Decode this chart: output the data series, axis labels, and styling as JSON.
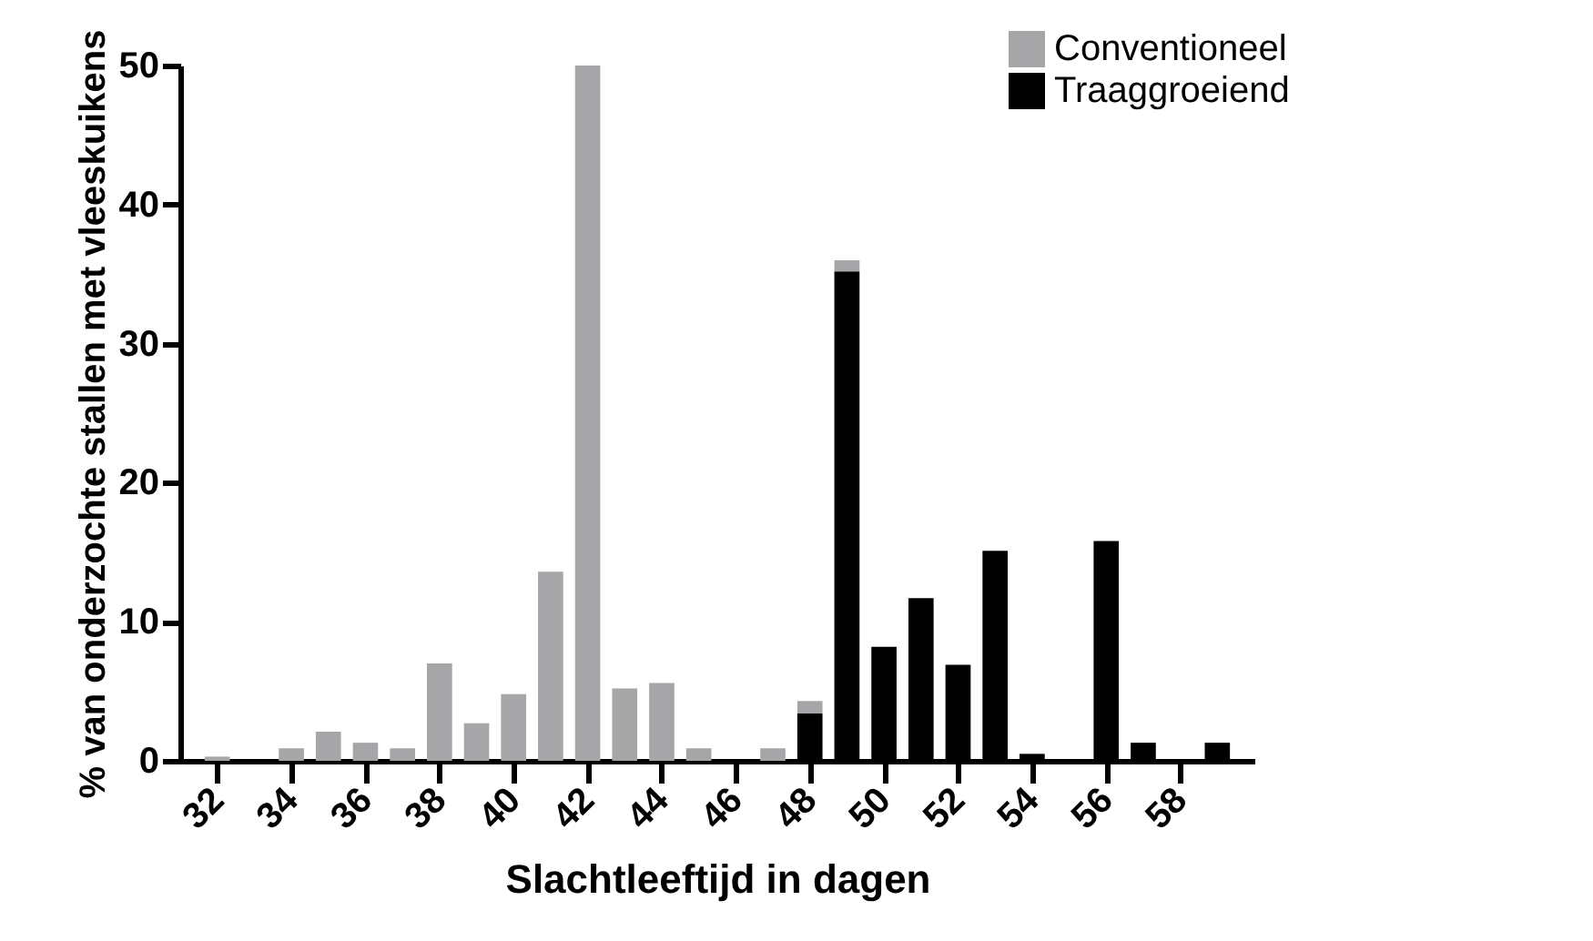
{
  "chart_data": {
    "type": "bar",
    "xlabel": "Slachtleeftijd in dagen",
    "ylabel": "% van onderzochte stallen met vleeskuikens",
    "x": [
      32,
      33,
      34,
      35,
      36,
      37,
      38,
      39,
      40,
      41,
      42,
      43,
      44,
      45,
      46,
      47,
      48,
      49,
      50,
      51,
      52,
      53,
      54,
      55,
      56,
      57,
      58,
      59
    ],
    "stacked": true,
    "series": [
      {
        "name": "Traaggroeiend",
        "color": "#000000",
        "values": [
          null,
          null,
          null,
          null,
          null,
          null,
          null,
          null,
          null,
          null,
          null,
          null,
          null,
          null,
          null,
          null,
          3.4,
          35.2,
          8.2,
          11.7,
          6.9,
          15.1,
          0.5,
          0,
          15.8,
          1.3,
          0,
          1.3
        ]
      },
      {
        "name": "Conventioneel",
        "color": "#a6a6a8",
        "values": [
          0.3,
          0,
          0.9,
          2.1,
          1.3,
          0.9,
          7.0,
          2.7,
          4.8,
          13.6,
          50,
          5.2,
          5.6,
          0.9,
          0,
          0.9,
          0.9,
          0.8,
          null,
          null,
          null,
          null,
          null,
          null,
          null,
          null,
          null,
          null
        ]
      }
    ],
    "xlim": [
      31,
      60
    ],
    "xticks": [
      32,
      34,
      36,
      38,
      40,
      42,
      44,
      46,
      48,
      50,
      52,
      54,
      56,
      58
    ],
    "ylim": [
      0,
      50
    ],
    "yticks": [
      0,
      10,
      20,
      30,
      40,
      50
    ],
    "grid": false,
    "legend": "top right"
  }
}
